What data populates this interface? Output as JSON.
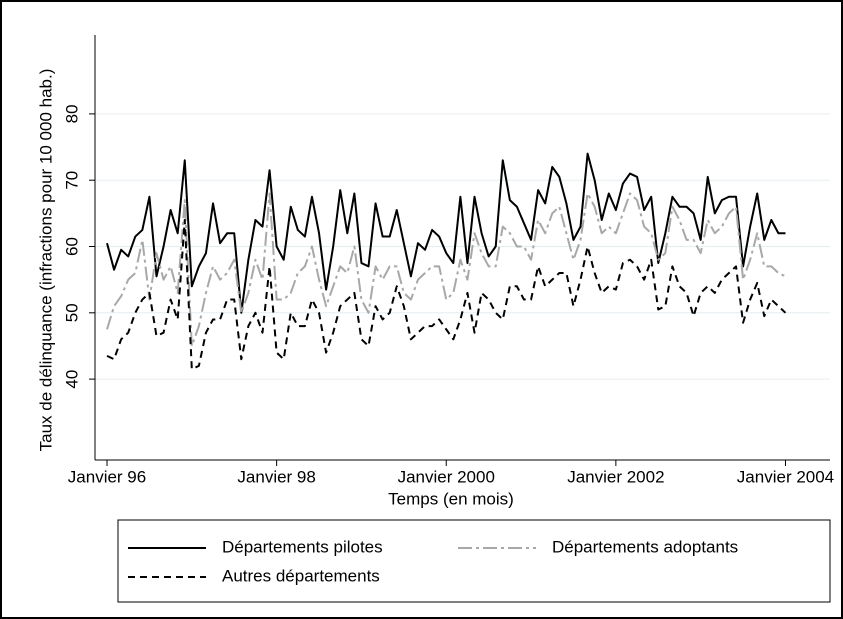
{
  "chart_data": {
    "type": "line",
    "x_label": "Temps (en mois)",
    "y_label": "Taux de délinquance (infractions pour 10 000 hab.)",
    "x": [
      0,
      1,
      2,
      3,
      4,
      5,
      6,
      7,
      8,
      9,
      10,
      11,
      12,
      13,
      14,
      15,
      16,
      17,
      18,
      19,
      20,
      21,
      22,
      23,
      24,
      25,
      26,
      27,
      28,
      29,
      30,
      31,
      32,
      33,
      34,
      35,
      36,
      37,
      38,
      39,
      40,
      41,
      42,
      43,
      44,
      45,
      46,
      47,
      48,
      49,
      50,
      51,
      52,
      53,
      54,
      55,
      56,
      57,
      58,
      59,
      60,
      61,
      62,
      63,
      64,
      65,
      66,
      67,
      68,
      69,
      70,
      71,
      72,
      73,
      74,
      75,
      76,
      77,
      78,
      79,
      80,
      81,
      82,
      83,
      84,
      85,
      86,
      87,
      88,
      89,
      90,
      91,
      92,
      93,
      94,
      95,
      96
    ],
    "xlim": [
      -1.7,
      102.3
    ],
    "xticks": [
      {
        "value": 0,
        "label": "Janvier 96"
      },
      {
        "value": 24,
        "label": "Janvier 98"
      },
      {
        "value": 48,
        "label": "Janvier 2000"
      },
      {
        "value": 72,
        "label": "Janvier 2002"
      },
      {
        "value": 96,
        "label": "Janvier 2004"
      }
    ],
    "ylim": [
      27.8,
      91.9
    ],
    "yticks": [
      40,
      50,
      60,
      70,
      80
    ],
    "grid": true,
    "series": [
      {
        "name": "Départements pilotes",
        "color": "#000000",
        "dash": "solid",
        "values": [
          60.5,
          56.5,
          59.5,
          58.5,
          61.5,
          62.5,
          67.5,
          55.5,
          60,
          65.5,
          62,
          73,
          54,
          57,
          59,
          66.5,
          60.5,
          62,
          62,
          50,
          58,
          64,
          63,
          71.5,
          60,
          58,
          66,
          62.5,
          61.5,
          67.5,
          62,
          53.5,
          60,
          68.5,
          62,
          68,
          57.5,
          57,
          66.5,
          61.5,
          61.5,
          65.5,
          60.5,
          55.5,
          60.5,
          59.5,
          62.5,
          61.5,
          59,
          57.5,
          67.5,
          57.5,
          67.5,
          62,
          58.5,
          60,
          73,
          67,
          66,
          63.5,
          61,
          68.5,
          66.5,
          72,
          70.5,
          66.5,
          61,
          63,
          74,
          70,
          64,
          68,
          65.5,
          69.5,
          71,
          70.5,
          65.5,
          67.5,
          57.5,
          62,
          67.5,
          66,
          66,
          65,
          61,
          70.5,
          65,
          67,
          67.5,
          67.5,
          57,
          63,
          68,
          61,
          64,
          62,
          62
        ]
      },
      {
        "name": "Départements adoptants",
        "color": "#a8a8a8",
        "dash": "dashdot",
        "values": [
          47.5,
          51,
          52.5,
          55,
          56,
          61,
          52,
          59,
          55,
          57,
          53,
          67,
          45,
          48,
          53,
          57,
          55,
          56,
          58,
          50,
          53,
          58,
          55,
          68,
          52,
          52,
          53,
          56,
          57,
          60,
          55,
          51,
          54,
          57,
          56,
          60,
          52,
          50,
          57,
          55,
          57,
          57,
          53,
          52,
          55,
          56,
          57,
          57,
          52,
          53,
          58,
          55,
          62,
          59,
          57,
          57,
          63,
          62,
          60,
          60,
          58,
          64,
          62,
          65,
          66,
          62,
          58,
          61,
          68,
          66,
          62,
          63,
          62,
          65,
          68,
          67,
          63,
          62,
          58,
          59,
          66,
          64,
          61,
          61,
          59,
          64,
          62,
          63,
          65,
          66,
          55,
          58,
          62,
          57,
          57,
          56,
          55.5
        ]
      },
      {
        "name": "Autres départements",
        "color": "#000000",
        "dash": "dash",
        "values": [
          43.5,
          43,
          46,
          47,
          50,
          52,
          53,
          46.5,
          47,
          52,
          49,
          64,
          41.5,
          42,
          47,
          49,
          49,
          52,
          52,
          43,
          48,
          50,
          47,
          57,
          44,
          43,
          50,
          48,
          48,
          52,
          50,
          44,
          47,
          51,
          52,
          53,
          46,
          45,
          51,
          49,
          50,
          54,
          51,
          46,
          47,
          48,
          48,
          49,
          47.5,
          46,
          49,
          53,
          47,
          53,
          52,
          50,
          49,
          54,
          54,
          52,
          52,
          57,
          54,
          55,
          56,
          56,
          51,
          55,
          60,
          56,
          53,
          54,
          53.5,
          57.5,
          58,
          57,
          55,
          58,
          50.5,
          51,
          57,
          54,
          53,
          49.5,
          53,
          54,
          53,
          55,
          56,
          57,
          48.5,
          52,
          54.5,
          49.5,
          52,
          51,
          50
        ]
      }
    ]
  }
}
